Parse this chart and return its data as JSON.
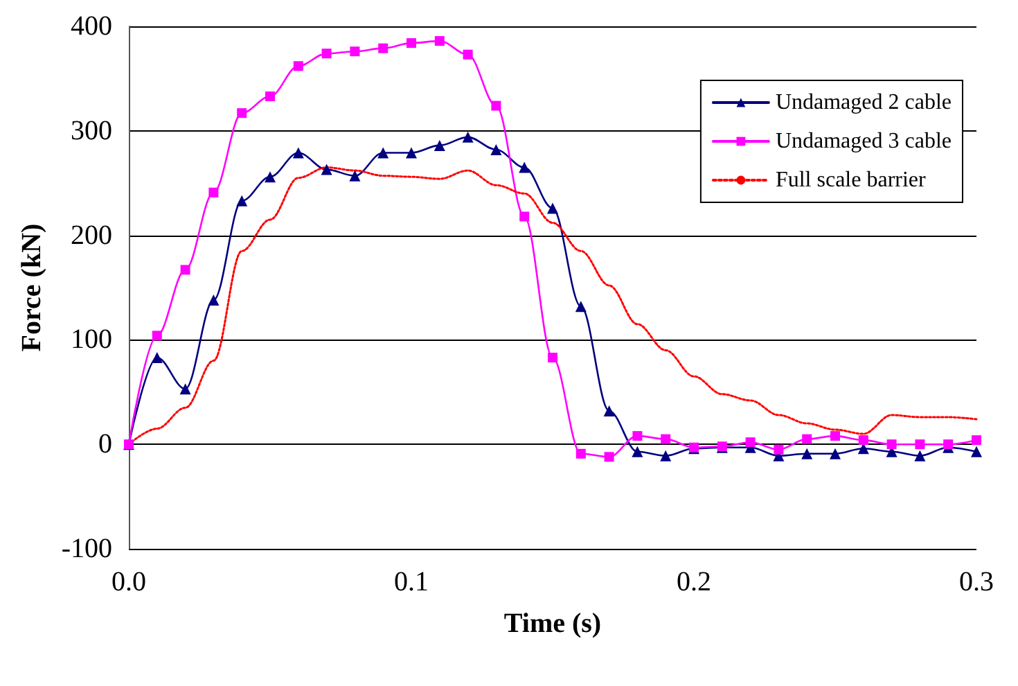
{
  "chart_data": {
    "type": "line",
    "xlabel": "Time (s)",
    "ylabel": "Force (kN)",
    "x": [
      0,
      0.01,
      0.02,
      0.03,
      0.04,
      0.05,
      0.06,
      0.07,
      0.08,
      0.09,
      0.1,
      0.11,
      0.12,
      0.13,
      0.14,
      0.15,
      0.16,
      0.17,
      0.18,
      0.19,
      0.2,
      0.21,
      0.22,
      0.23,
      0.24,
      0.25,
      0.26,
      0.27,
      0.28,
      0.29,
      0.3
    ],
    "series": [
      {
        "name": "Undamaged 2 cable",
        "color": "#000080",
        "marker": "triangle",
        "line_style": "solid",
        "values": [
          0,
          83,
          53,
          138,
          233,
          256,
          279,
          263,
          257,
          279,
          279,
          286,
          294,
          282,
          265,
          226,
          132,
          32,
          -7,
          -11,
          -4,
          -3,
          -3,
          -11,
          -9,
          -9,
          -4,
          -7,
          -11,
          -3,
          -7
        ]
      },
      {
        "name": "Undamaged 3 cable",
        "color": "#ff00ff",
        "marker": "square",
        "line_style": "solid",
        "values": [
          0,
          104,
          167,
          241,
          317,
          333,
          362,
          374,
          376,
          379,
          384,
          386,
          373,
          324,
          218,
          83,
          -9,
          -12,
          8,
          5,
          -3,
          -2,
          2,
          -5,
          5,
          8,
          4,
          0,
          0,
          0,
          4
        ]
      },
      {
        "name": "Full scale barrier",
        "color": "#ff0000",
        "marker": "none",
        "line_style": "dotted",
        "values": [
          0,
          15,
          35,
          80,
          185,
          215,
          255,
          265,
          262,
          257,
          256,
          254,
          262,
          248,
          240,
          212,
          185,
          152,
          115,
          90,
          65,
          48,
          42,
          28,
          20,
          14,
          10,
          28,
          26,
          26,
          24
        ]
      }
    ],
    "xlim": [
      0,
      0.3
    ],
    "xticks": [
      {
        "value": 0,
        "label": "0.0"
      },
      0.1,
      0.2,
      0.3
    ],
    "ylim": [
      -100,
      400
    ],
    "yticks": [
      -100,
      0,
      100,
      200,
      300,
      400
    ],
    "grid": "y",
    "legend": "top right"
  }
}
